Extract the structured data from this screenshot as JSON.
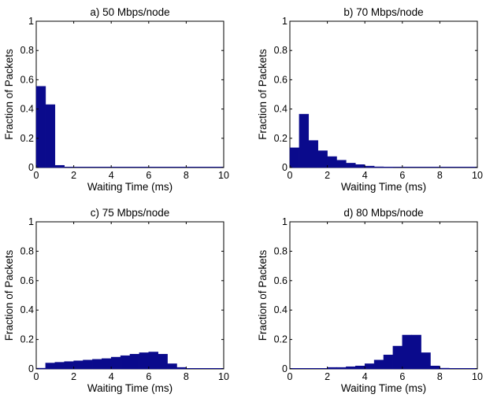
{
  "chart_data": [
    {
      "type": "bar",
      "title": "a) 50 Mbps/node",
      "xlabel": "Waiting Time (ms)",
      "ylabel": "Fraction of Packets",
      "xlim": [
        0,
        10
      ],
      "ylim": [
        0,
        1
      ],
      "xticks": [
        "0",
        "2",
        "4",
        "6",
        "8",
        "10"
      ],
      "yticks": [
        "0",
        "0.2",
        "0.4",
        "0.6",
        "0.8",
        "1"
      ],
      "bin_width": 0.5,
      "x": [
        0.25,
        0.75,
        1.25,
        1.75,
        2.25,
        2.75,
        3.25,
        3.75,
        4.25,
        4.75,
        5.25,
        5.75,
        6.25,
        6.75,
        7.25,
        7.75,
        8.25,
        8.75,
        9.25,
        9.75
      ],
      "values": [
        0.555,
        0.43,
        0.015,
        0,
        0,
        0,
        0,
        0,
        0,
        0,
        0,
        0,
        0,
        0,
        0,
        0,
        0,
        0,
        0,
        0
      ]
    },
    {
      "type": "bar",
      "title": "b) 70 Mbps/node",
      "xlabel": "Waiting Time (ms)",
      "ylabel": "Fraction of Packets",
      "xlim": [
        0,
        10
      ],
      "ylim": [
        0,
        1
      ],
      "xticks": [
        "0",
        "2",
        "4",
        "6",
        "8",
        "10"
      ],
      "yticks": [
        "0",
        "0.2",
        "0.4",
        "0.6",
        "0.8",
        "1"
      ],
      "bin_width": 0.5,
      "x": [
        0.25,
        0.75,
        1.25,
        1.75,
        2.25,
        2.75,
        3.25,
        3.75,
        4.25,
        4.75,
        5.25,
        5.75,
        6.25,
        6.75,
        7.25,
        7.75,
        8.25,
        8.75,
        9.25,
        9.75
      ],
      "values": [
        0.135,
        0.365,
        0.185,
        0.115,
        0.075,
        0.05,
        0.03,
        0.02,
        0.01,
        0.005,
        0.002,
        0,
        0,
        0,
        0,
        0,
        0,
        0,
        0,
        0
      ]
    },
    {
      "type": "bar",
      "title": "c) 75 Mbps/node",
      "xlabel": "Waiting Time (ms)",
      "ylabel": "Fraction of Packets",
      "xlim": [
        0,
        10
      ],
      "ylim": [
        0,
        1
      ],
      "xticks": [
        "0",
        "2",
        "4",
        "6",
        "8",
        "10"
      ],
      "yticks": [
        "0",
        "0.2",
        "0.4",
        "0.6",
        "0.8",
        "1"
      ],
      "bin_width": 0.5,
      "x": [
        0.25,
        0.75,
        1.25,
        1.75,
        2.25,
        2.75,
        3.25,
        3.75,
        4.25,
        4.75,
        5.25,
        5.75,
        6.25,
        6.75,
        7.25,
        7.75,
        8.25,
        8.75,
        9.25,
        9.75
      ],
      "values": [
        0.005,
        0.04,
        0.045,
        0.05,
        0.055,
        0.06,
        0.065,
        0.07,
        0.08,
        0.09,
        0.1,
        0.11,
        0.115,
        0.1,
        0.035,
        0.01,
        0,
        0,
        0,
        0
      ]
    },
    {
      "type": "bar",
      "title": "d) 80 Mbps/node",
      "xlabel": "Waiting Time (ms)",
      "ylabel": "Fraction of Packets",
      "xlim": [
        0,
        10
      ],
      "ylim": [
        0,
        1
      ],
      "xticks": [
        "0",
        "2",
        "4",
        "6",
        "8",
        "10"
      ],
      "yticks": [
        "0",
        "0.2",
        "0.4",
        "0.6",
        "0.8",
        "1"
      ],
      "bin_width": 0.5,
      "x": [
        0.25,
        0.75,
        1.25,
        1.75,
        2.25,
        2.75,
        3.25,
        3.75,
        4.25,
        4.75,
        5.25,
        5.75,
        6.25,
        6.75,
        7.25,
        7.75,
        8.25,
        8.75,
        9.25,
        9.75
      ],
      "values": [
        0,
        0,
        0,
        0,
        0.01,
        0.01,
        0.015,
        0.02,
        0.035,
        0.06,
        0.095,
        0.155,
        0.23,
        0.23,
        0.11,
        0.02,
        0.005,
        0,
        0,
        0
      ]
    }
  ],
  "colors": {
    "bar": "#0a0a8c",
    "axis": "#000000"
  }
}
